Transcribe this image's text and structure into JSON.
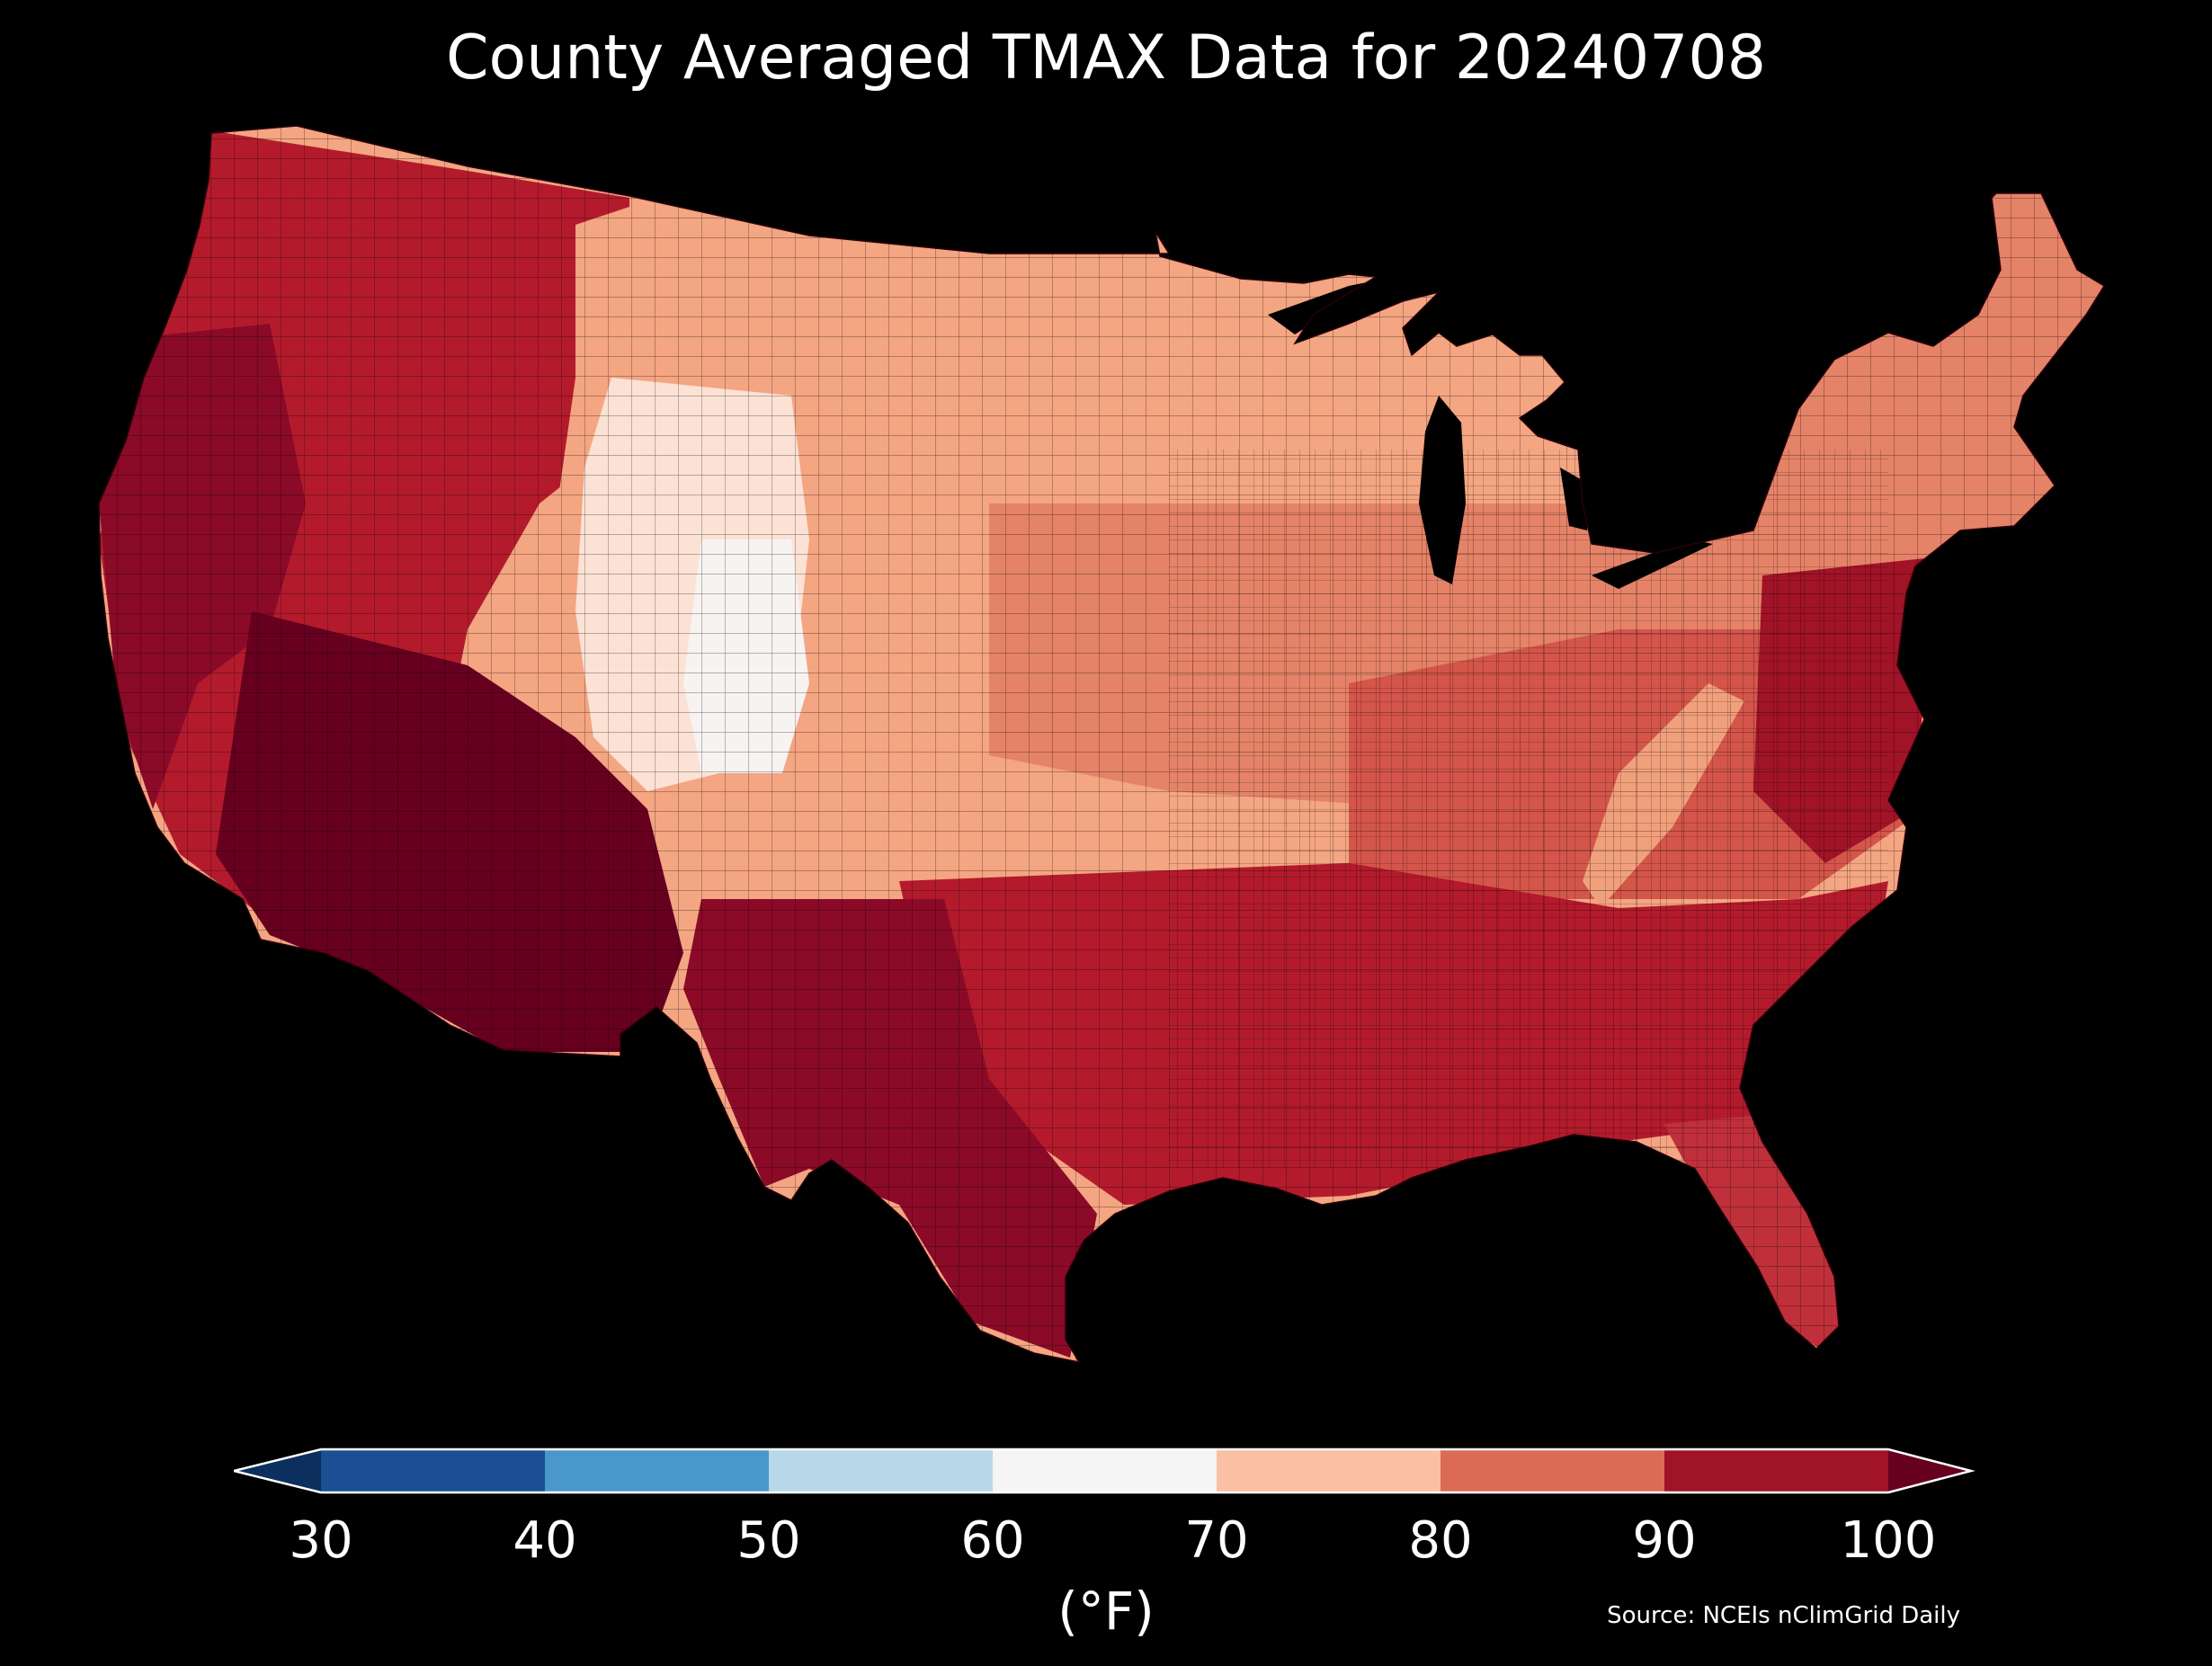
{
  "title": "County Averaged TMAX Data for 20240708",
  "source": "Source: NCEIs nClimGrid Daily",
  "colorbar": {
    "units": "(°F)",
    "ticks": [
      "30",
      "40",
      "50",
      "60",
      "70",
      "80",
      "90",
      "100"
    ],
    "bins": [
      {
        "min": 30,
        "max": 40,
        "color": "#1a4f94"
      },
      {
        "min": 40,
        "max": 50,
        "color": "#4a98c9"
      },
      {
        "min": 50,
        "max": 60,
        "color": "#b8d8ea"
      },
      {
        "min": 60,
        "max": 70,
        "color": "#f5f5f5"
      },
      {
        "min": 70,
        "max": 80,
        "color": "#f9c0a3"
      },
      {
        "min": 80,
        "max": 90,
        "color": "#dc6b55"
      },
      {
        "min": 90,
        "max": 100,
        "color": "#a11327"
      }
    ],
    "under_color": "#0d2f5e",
    "over_color": "#67001f"
  },
  "regions": {
    "hot_southwest": {
      "value": 100,
      "color": "#67001f"
    },
    "hot_west_coast": {
      "value": 95,
      "color": "#8b0a28"
    },
    "interior_west": {
      "value": 90,
      "color": "#b31b2c"
    },
    "southern_plains": {
      "value": 95,
      "color": "#8b0a28"
    },
    "gulf_southeast": {
      "value": 90,
      "color": "#b31b2c"
    },
    "east_central": {
      "value": 85,
      "color": "#d4554a"
    },
    "mid_atlantic": {
      "value": 92,
      "color": "#a11327"
    },
    "midwest": {
      "value": 80,
      "color": "#e58368"
    },
    "northern_plains": {
      "value": 75,
      "color": "#f4a582"
    },
    "northeast": {
      "value": 80,
      "color": "#e58368"
    },
    "rockies": {
      "value": 68,
      "color": "#fbe2d4"
    },
    "high_colorado": {
      "value": 63,
      "color": "#f7f3f1"
    },
    "appalachian_spine": {
      "value": 78,
      "color": "#f1a07c"
    },
    "florida": {
      "value": 88,
      "color": "#c0303a"
    }
  }
}
